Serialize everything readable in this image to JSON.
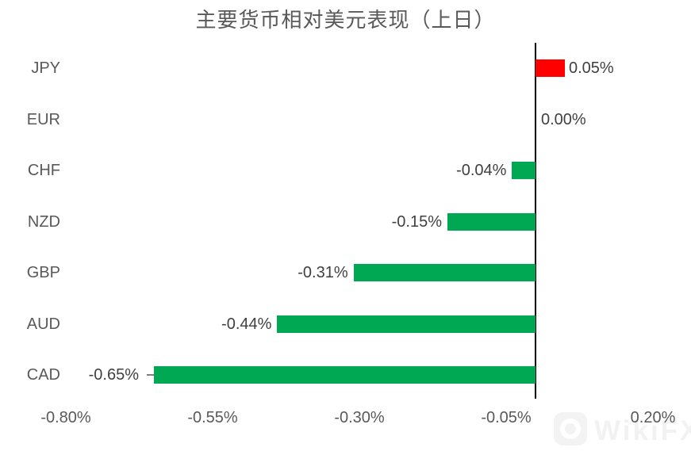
{
  "page": {
    "background": "#ffffff"
  },
  "chart_data": {
    "type": "bar",
    "orientation": "horizontal",
    "title": "主要货币相对美元表现（上日）",
    "categories": [
      "JPY",
      "EUR",
      "CHF",
      "NZD",
      "GBP",
      "AUD",
      "CAD"
    ],
    "values": [
      0.05,
      0.0,
      -0.04,
      -0.15,
      -0.31,
      -0.44,
      -0.65
    ],
    "value_labels": [
      "0.05%",
      "0.00%",
      "-0.04%",
      "-0.15%",
      "-0.31%",
      "-0.44%",
      "-0.65%"
    ],
    "leader_line_categories": [
      "CAD"
    ],
    "x_ticks": [
      {
        "label": "-0.80%",
        "value": -0.8
      },
      {
        "label": "-0.55%",
        "value": -0.55
      },
      {
        "label": "-0.30%",
        "value": -0.3
      },
      {
        "label": "-0.05%",
        "value": -0.05
      },
      {
        "label": "0.20%",
        "value": 0.2
      }
    ],
    "xlim": [
      -0.8,
      0.2
    ],
    "xlabel": "",
    "ylabel": "",
    "grid": false,
    "legend": "none",
    "colors": {
      "positive_bar": "#FF0000",
      "negative_bar": "#00A854",
      "axis_line": "#000000",
      "title_text": "#595959",
      "tick_text": "#595959",
      "value_text": "#404040"
    }
  },
  "watermark": {
    "text": "WikiFX",
    "icon": "wikifx-logo"
  }
}
